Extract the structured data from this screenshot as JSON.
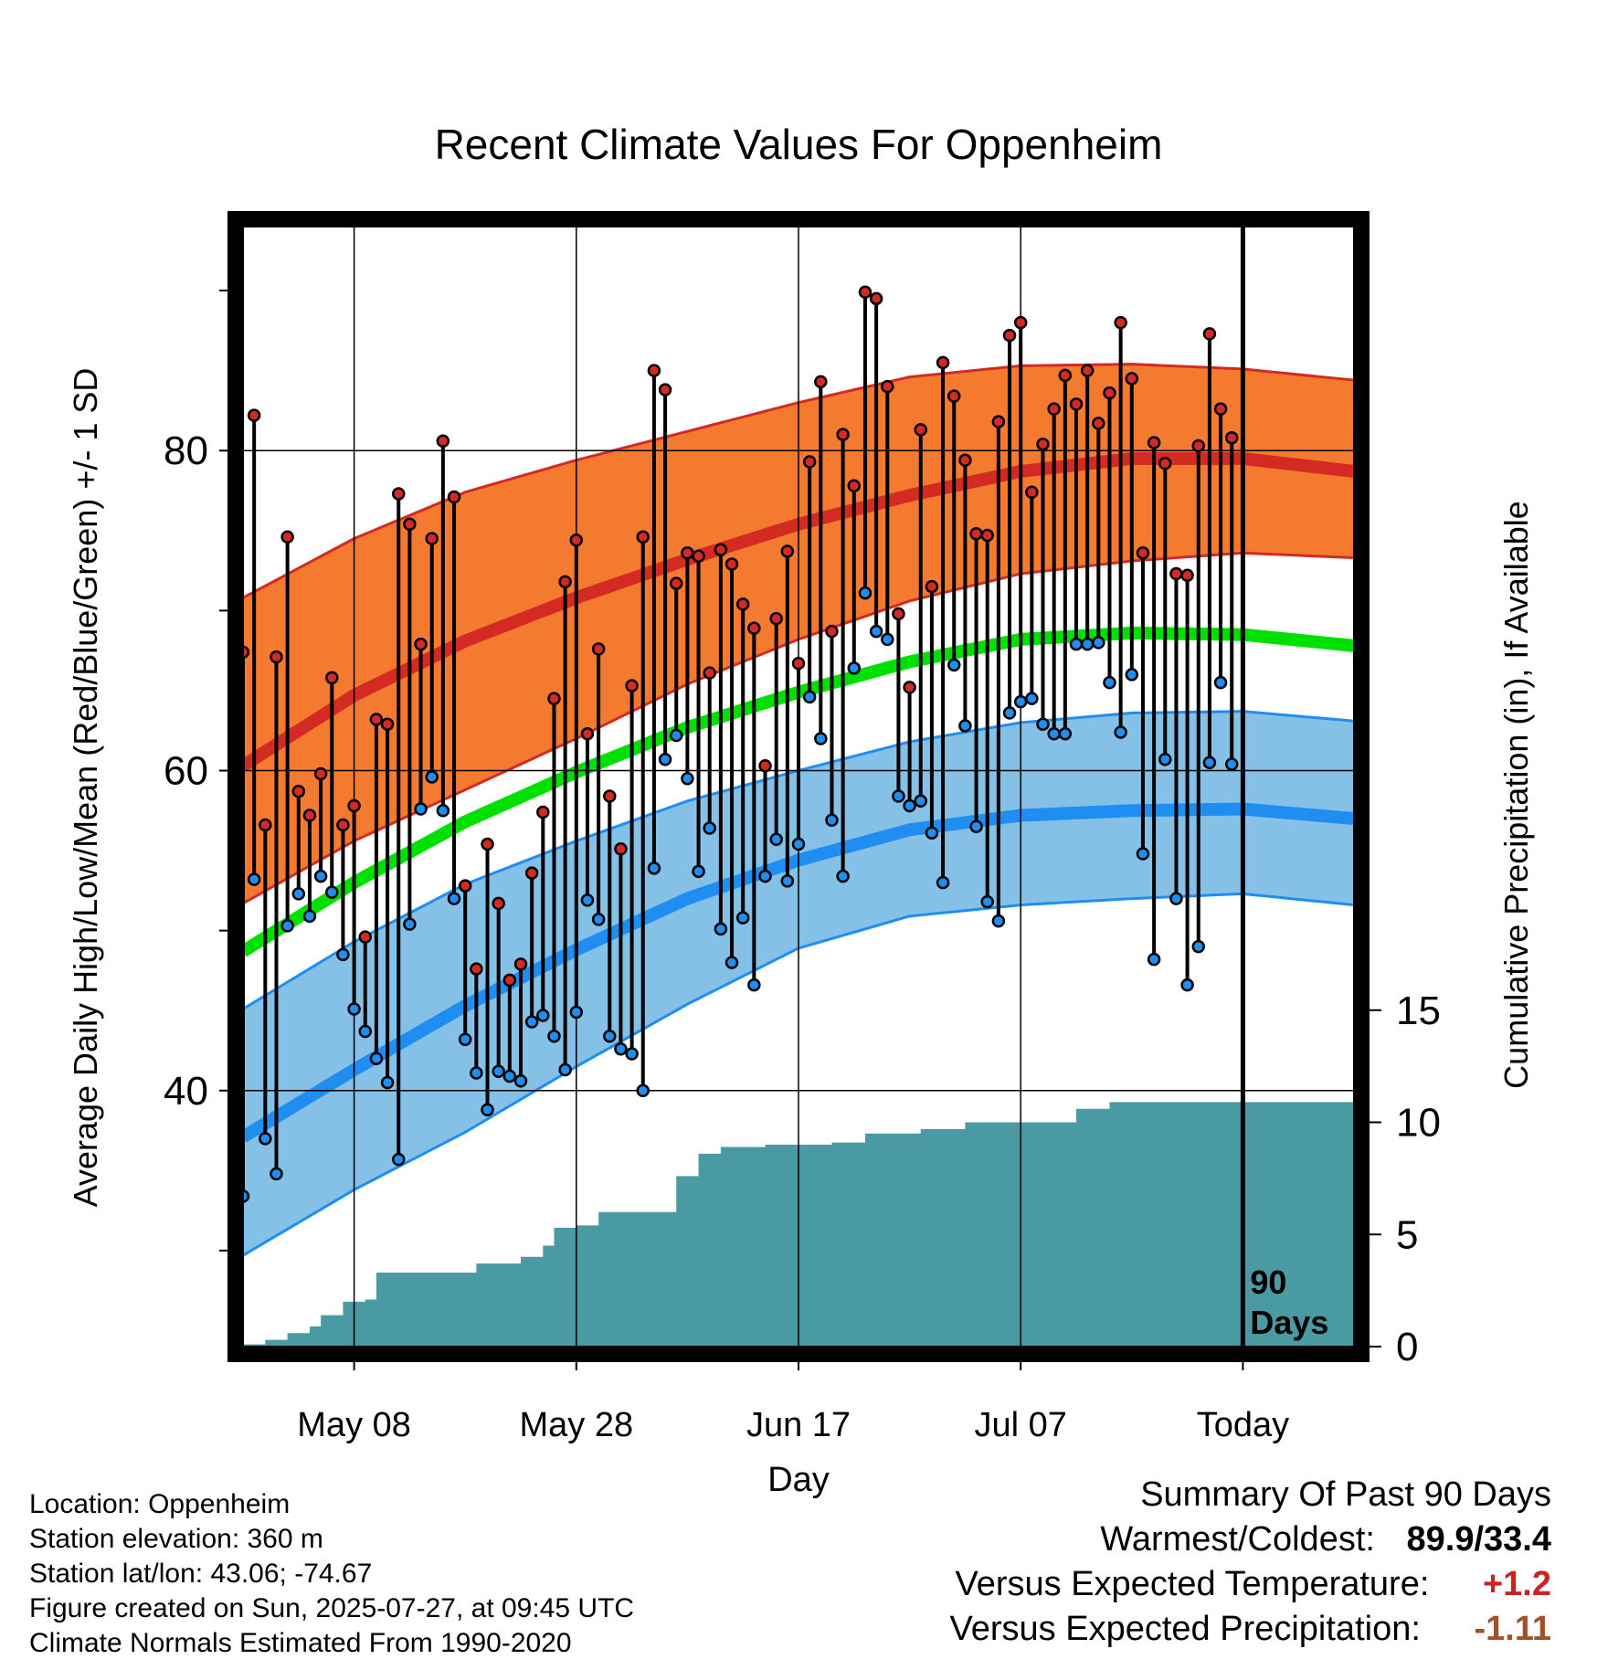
{
  "colors": {
    "high_band": "#f47a30",
    "high_mean": "#d32a24",
    "low_band": "#85c1e7",
    "low_mean": "#1f8ef0",
    "mean": "#00e000",
    "precip": "#4a9aa4",
    "high_dot": "#d32a24",
    "low_dot": "#1f8ef0",
    "expected_temp_color": "#cc2222",
    "expected_precip_color": "#a0522d"
  },
  "chart_data": {
    "type": "line",
    "title": "Recent Climate Values For Oppenheim",
    "xlabel": "Day",
    "ylabel": "Average Daily High/Low/Mean (Red/Blue/Green) +/- 1 SD",
    "y2label": "Cumulative Precipitation (in), If Available",
    "x_ticks": [
      "May 08",
      "May 28",
      "Jun 17",
      "Jul 07",
      "Today"
    ],
    "y_ticks": [
      "40",
      "60",
      "80"
    ],
    "y2_ticks": [
      "0",
      "5",
      "10",
      "15"
    ],
    "ylim": [
      24,
      94
    ],
    "y2lim": [
      0,
      47
    ],
    "grid": true,
    "today_marker": [
      "90",
      "Days"
    ],
    "days": [
      1,
      101
    ],
    "today_day": 91,
    "normal_high": [
      [
        1,
        60.3
      ],
      [
        11,
        64.7
      ],
      [
        21,
        68.1
      ],
      [
        31,
        70.8
      ],
      [
        41,
        73.2
      ],
      [
        51,
        75.4
      ],
      [
        61,
        77.2
      ],
      [
        71,
        78.7
      ],
      [
        81,
        79.5
      ],
      [
        91,
        79.5
      ],
      [
        101,
        78.7
      ]
    ],
    "normal_high_upper": [
      [
        1,
        70.8
      ],
      [
        11,
        74.5
      ],
      [
        21,
        77.4
      ],
      [
        31,
        79.4
      ],
      [
        41,
        81.2
      ],
      [
        51,
        83.0
      ],
      [
        61,
        84.6
      ],
      [
        71,
        85.3
      ],
      [
        81,
        85.4
      ],
      [
        91,
        85.1
      ],
      [
        101,
        84.4
      ]
    ],
    "normal_high_lower": [
      [
        1,
        51.7
      ],
      [
        11,
        55.6
      ],
      [
        21,
        58.8
      ],
      [
        31,
        62.0
      ],
      [
        41,
        65.4
      ],
      [
        51,
        68.2
      ],
      [
        61,
        70.6
      ],
      [
        71,
        72.3
      ],
      [
        81,
        73.1
      ],
      [
        91,
        73.6
      ],
      [
        101,
        73.3
      ]
    ],
    "normal_low": [
      [
        1,
        37.1
      ],
      [
        11,
        41.3
      ],
      [
        21,
        45.3
      ],
      [
        31,
        48.8
      ],
      [
        41,
        52.0
      ],
      [
        51,
        54.4
      ],
      [
        61,
        56.3
      ],
      [
        71,
        57.2
      ],
      [
        81,
        57.5
      ],
      [
        91,
        57.6
      ],
      [
        101,
        57.0
      ]
    ],
    "normal_low_upper": [
      [
        1,
        45.1
      ],
      [
        11,
        49.3
      ],
      [
        21,
        52.9
      ],
      [
        31,
        55.6
      ],
      [
        41,
        58.1
      ],
      [
        51,
        60.0
      ],
      [
        61,
        61.8
      ],
      [
        71,
        63.0
      ],
      [
        81,
        63.6
      ],
      [
        91,
        63.7
      ],
      [
        101,
        63.1
      ]
    ],
    "normal_low_lower": [
      [
        1,
        29.7
      ],
      [
        11,
        33.8
      ],
      [
        21,
        37.4
      ],
      [
        31,
        41.5
      ],
      [
        41,
        45.4
      ],
      [
        51,
        48.9
      ],
      [
        61,
        50.9
      ],
      [
        71,
        51.6
      ],
      [
        81,
        52.0
      ],
      [
        91,
        52.3
      ],
      [
        101,
        51.6
      ]
    ],
    "normal_mean": [
      [
        1,
        48.7
      ],
      [
        11,
        53.0
      ],
      [
        21,
        56.8
      ],
      [
        31,
        59.9
      ],
      [
        41,
        62.7
      ],
      [
        51,
        64.9
      ],
      [
        61,
        66.8
      ],
      [
        71,
        68.2
      ],
      [
        81,
        68.6
      ],
      [
        91,
        68.5
      ],
      [
        101,
        67.8
      ]
    ],
    "daily_high": [
      67.4,
      82.2,
      56.6,
      67.1,
      74.6,
      58.7,
      57.2,
      59.8,
      65.8,
      56.6,
      57.8,
      49.6,
      63.2,
      62.9,
      77.3,
      75.4,
      67.9,
      74.5,
      80.6,
      77.1,
      52.8,
      47.6,
      55.4,
      51.7,
      46.9,
      47.9,
      53.6,
      57.4,
      64.5,
      71.8,
      74.4,
      62.3,
      67.6,
      58.4,
      55.1,
      65.3,
      74.6,
      85.0,
      83.8,
      71.7,
      73.6,
      73.4,
      66.1,
      73.8,
      72.9,
      70.4,
      68.9,
      60.3,
      69.5,
      73.7,
      66.7,
      79.3,
      84.3,
      68.7,
      81.0,
      77.8,
      89.9,
      89.5,
      84.0,
      69.8,
      65.2,
      81.3,
      71.5,
      85.5,
      83.4,
      79.4,
      74.8,
      74.7,
      81.8,
      87.2,
      88.0,
      77.4,
      80.4,
      82.6,
      84.7,
      82.9,
      85.0,
      81.7,
      83.6,
      88.0,
      84.5,
      73.6,
      80.5,
      79.2,
      72.3,
      72.2,
      80.3,
      87.3,
      82.6,
      80.8
    ],
    "daily_low": [
      33.4,
      53.2,
      37.0,
      34.8,
      50.3,
      52.3,
      50.9,
      53.4,
      52.4,
      48.5,
      45.1,
      43.7,
      42.0,
      40.5,
      35.7,
      50.4,
      57.6,
      59.6,
      57.5,
      52.0,
      43.2,
      41.1,
      38.8,
      41.2,
      40.9,
      40.6,
      44.3,
      44.7,
      43.4,
      41.3,
      44.9,
      51.9,
      50.7,
      43.4,
      42.6,
      42.3,
      40.0,
      53.9,
      60.7,
      62.2,
      59.5,
      53.7,
      56.4,
      50.1,
      48.0,
      50.8,
      46.6,
      53.4,
      55.7,
      53.1,
      55.4,
      64.6,
      62.0,
      56.9,
      53.4,
      66.4,
      71.1,
      68.7,
      68.2,
      58.4,
      57.8,
      58.1,
      56.1,
      53.0,
      66.6,
      62.8,
      56.5,
      51.8,
      50.6,
      63.6,
      64.3,
      64.5,
      62.9,
      62.3,
      62.3,
      67.9,
      67.9,
      68.0,
      65.5,
      62.4,
      66.0,
      54.8,
      48.2,
      60.7,
      52.0,
      46.6,
      49.0,
      60.5,
      65.5,
      60.4
    ],
    "cumulative_precip": [
      [
        1,
        0.1
      ],
      [
        3,
        0.3
      ],
      [
        5,
        0.6
      ],
      [
        7,
        0.9
      ],
      [
        8,
        1.4
      ],
      [
        9,
        1.4
      ],
      [
        10,
        2.0
      ],
      [
        12,
        2.1
      ],
      [
        13,
        3.3
      ],
      [
        20,
        3.3
      ],
      [
        22,
        3.7
      ],
      [
        24,
        3.7
      ],
      [
        26,
        4.0
      ],
      [
        28,
        4.5
      ],
      [
        29,
        5.3
      ],
      [
        31,
        5.4
      ],
      [
        33,
        6.0
      ],
      [
        38,
        6.0
      ],
      [
        40,
        7.6
      ],
      [
        42,
        8.6
      ],
      [
        44,
        8.9
      ],
      [
        48,
        9.0
      ],
      [
        54,
        9.1
      ],
      [
        57,
        9.5
      ],
      [
        60,
        9.5
      ],
      [
        62,
        9.7
      ],
      [
        64,
        9.7
      ],
      [
        66,
        10.0
      ],
      [
        74,
        10.0
      ],
      [
        76,
        10.6
      ],
      [
        79,
        10.9
      ],
      [
        91,
        10.9
      ]
    ]
  },
  "info": {
    "location": "Location: Oppenheim",
    "elevation": "Station elevation: 360 m",
    "latlon": "Station lat/lon: 43.06; -74.67",
    "created": "Figure created on Sun, 2025-07-27, at 09:45 UTC",
    "normals": "Climate Normals Estimated From 1990-2020"
  },
  "summary": {
    "title": "Summary Of Past 90 Days",
    "warmest_coldest_label": "Warmest/Coldest:",
    "warmest_coldest_value": "89.9/33.4",
    "expected_temp_label": "Versus Expected Temperature:",
    "expected_temp_value": "+1.2",
    "expected_precip_label": "Versus Expected Precipitation:",
    "expected_precip_value": "-1.11"
  }
}
